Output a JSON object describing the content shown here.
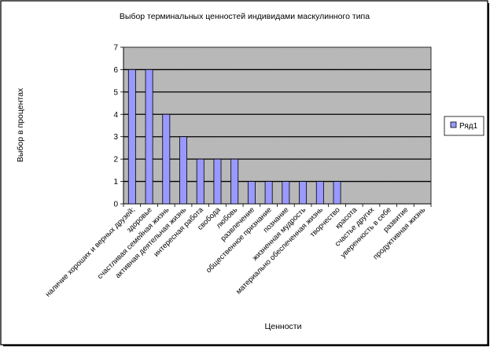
{
  "chart_data": {
    "type": "bar",
    "title": "Выбор терминальных ценностей индивидами маскулинного типа",
    "xlabel": "Ценности",
    "ylabel": "Выбор в процентах",
    "ylim": [
      0,
      7
    ],
    "yticks": [
      0,
      1,
      2,
      3,
      4,
      5,
      6,
      7
    ],
    "grid": true,
    "legend_position": "right",
    "categories": [
      "наличие хороших и верных друзей;",
      "здоровье",
      "счастливая семейная жизнь",
      "активная деятельная жизнь",
      "интересная работа",
      "свобода",
      "любовь",
      "развлечение",
      "общественное признание",
      "познание",
      "жизненная мудрость",
      "материально обеспеченная жизнь",
      "творчество",
      "красота",
      "счастье других",
      "уверенность в себе",
      "развитие",
      "продуктивная жизнь"
    ],
    "series": [
      {
        "name": "Ряд1",
        "color": "#9999ff",
        "values": [
          6,
          6,
          4,
          3,
          2,
          2,
          2,
          1,
          1,
          1,
          1,
          1,
          1,
          0,
          0,
          0,
          0,
          0
        ]
      }
    ]
  }
}
